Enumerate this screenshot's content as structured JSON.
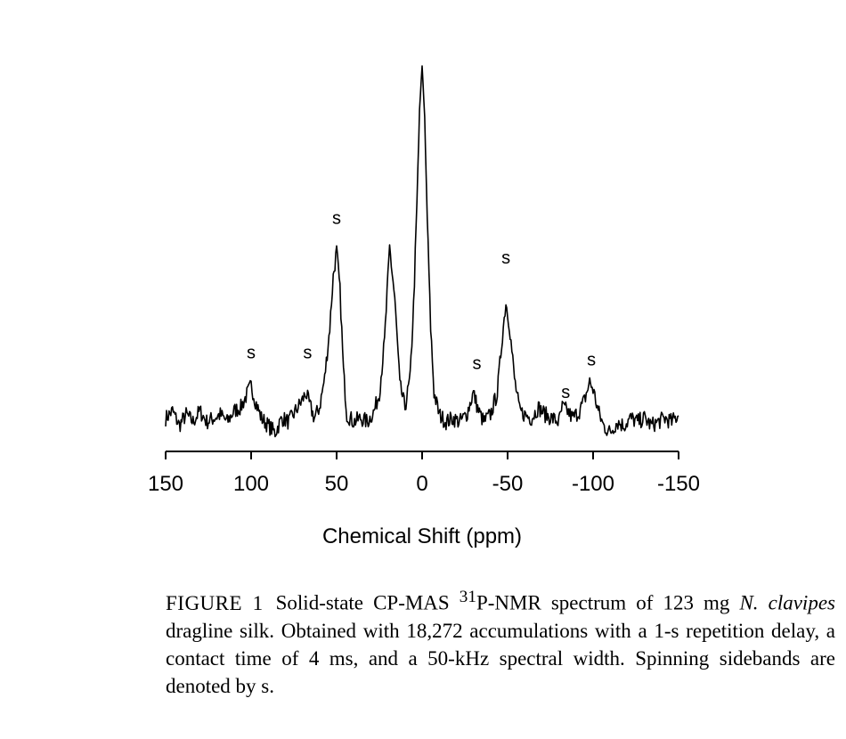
{
  "chart_data": {
    "type": "line",
    "xlabel": "Chemical Shift (ppm)",
    "xlim": [
      150,
      -150
    ],
    "x_reversed": true,
    "x_ticks": [
      {
        "value": 150,
        "label": "150"
      },
      {
        "value": 100,
        "label": "100"
      },
      {
        "value": 50,
        "label": "50"
      },
      {
        "value": 0,
        "label": "0"
      },
      {
        "value": -50,
        "label": "-50"
      },
      {
        "value": -100,
        "label": "-100"
      },
      {
        "value": -150,
        "label": "-150"
      }
    ],
    "y_axis_visible": false,
    "grid": false,
    "series": [
      {
        "x": [
          150,
          146,
          142,
          138,
          134,
          130,
          126,
          122,
          118,
          114,
          110,
          106,
          103,
          100,
          97,
          94,
          90,
          86,
          82,
          78,
          74,
          70,
          68,
          66,
          63,
          60,
          57,
          54,
          52,
          50,
          48,
          46,
          44,
          40,
          36,
          32,
          28,
          25,
          22,
          19,
          16,
          13,
          10,
          7,
          5,
          3,
          1.5,
          0,
          -1.5,
          -3,
          -5,
          -7,
          -10,
          -14,
          -18,
          -22,
          -26,
          -28,
          -30,
          -33,
          -36,
          -40,
          -44,
          -47,
          -49,
          -51,
          -54,
          -57,
          -60,
          -64,
          -68,
          -72,
          -76,
          -80,
          -82,
          -85,
          -88,
          -92,
          -95,
          -98,
          -100,
          -103,
          -106,
          -110,
          -114,
          -118,
          -122,
          -126,
          -130,
          -134,
          -138,
          -142,
          -146,
          -150
        ],
        "y": [
          0.03,
          0.05,
          0.01,
          0.04,
          0.02,
          0.05,
          0.02,
          0.03,
          0.04,
          0.02,
          0.05,
          0.06,
          0.09,
          0.12,
          0.07,
          0.03,
          0.01,
          -0.01,
          0.03,
          0.02,
          0.05,
          0.08,
          0.1,
          0.07,
          0.03,
          0.06,
          0.14,
          0.28,
          0.42,
          0.49,
          0.38,
          0.16,
          0.04,
          0.02,
          0.03,
          0.02,
          0.05,
          0.1,
          0.24,
          0.5,
          0.36,
          0.12,
          0.06,
          0.14,
          0.34,
          0.62,
          0.88,
          1.0,
          0.86,
          0.58,
          0.28,
          0.1,
          0.04,
          0.02,
          0.03,
          0.02,
          0.04,
          0.07,
          0.1,
          0.05,
          0.02,
          0.04,
          0.1,
          0.26,
          0.35,
          0.29,
          0.14,
          0.05,
          0.04,
          0.03,
          0.06,
          0.04,
          0.03,
          0.02,
          0.06,
          0.05,
          0.03,
          0.05,
          0.08,
          0.13,
          0.11,
          0.05,
          0.01,
          -0.01,
          0.02,
          0.01,
          0.03,
          0.02,
          0.03,
          0.01,
          0.02,
          0.03,
          0.02,
          0.04
        ]
      }
    ],
    "annotations": [
      {
        "text": "s",
        "x": 100,
        "y": 0.21
      },
      {
        "text": "s",
        "x": 67,
        "y": 0.21
      },
      {
        "text": "s",
        "x": 50,
        "y": 0.58
      },
      {
        "text": "s",
        "x": -32,
        "y": 0.18
      },
      {
        "text": "s",
        "x": -49,
        "y": 0.47
      },
      {
        "text": "s",
        "x": -84,
        "y": 0.1
      },
      {
        "text": "s",
        "x": -99,
        "y": 0.19
      }
    ]
  },
  "caption": {
    "label": "FIGURE 1",
    "text_1": "Solid-state CP-MAS ",
    "superscript": "31",
    "text_2": "P-NMR spectrum of 123 mg ",
    "species": "N. clavipes",
    "text_3": " dragline silk. Obtained with 18,272 accumulations with a 1-s repetition delay, a contact time of 4 ms, and a 50-kHz spectral width. Spinning sidebands are denoted by s."
  }
}
